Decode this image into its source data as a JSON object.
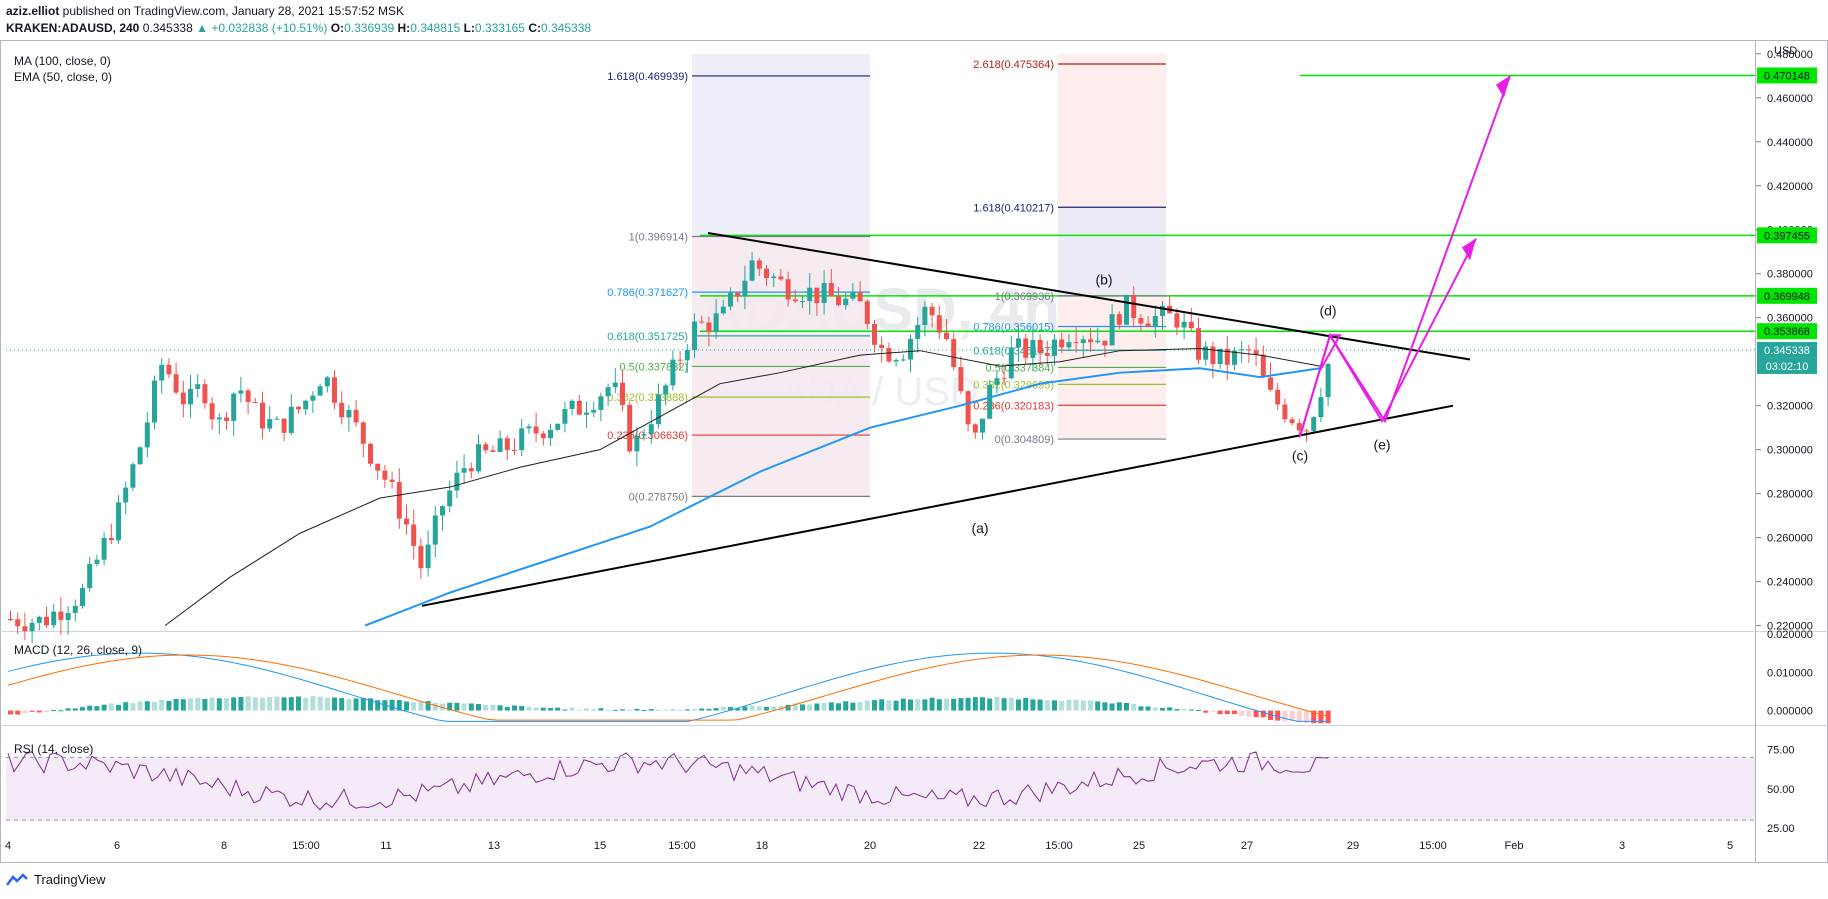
{
  "header": {
    "author": "aziz.elliot",
    "published": " published on TradingView.com, January 28, 2021 15:57:52 MSK",
    "symbol": "KRAKEN:ADAUSD, 240",
    "last": "0.345338",
    "change": "▲ +0.032838 (+10.51%)",
    "o_label": "O:",
    "o": "0.336939",
    "h_label": "H:",
    "h": "0.348815",
    "l_label": "L:",
    "l": "0.333165",
    "c_label": "C:",
    "c": "0.345338"
  },
  "indicators": {
    "ma": "MA (100, close, 0)",
    "ema": "EMA (50, close, 0)",
    "macd": "MACD (12, 26, close, 9)",
    "rsi": "RSI (14, close)"
  },
  "watermark": {
    "main": "ADAUSD, 4h",
    "sub": "ADA / USD"
  },
  "brand": {
    "name": "TradingView"
  },
  "colors": {
    "up": "#26a69a",
    "down": "#ef5350",
    "ma": "#1e1e1e",
    "ema": "#2196f3",
    "projection": "#e91ee6",
    "resistance": "#00e600",
    "trend": "#000000",
    "macd": "#2196f3",
    "signal": "#ff6d00",
    "rsi": "#7e2d8e"
  },
  "chart_data": {
    "type": "candlestick",
    "x_ticks": [
      "4",
      "6",
      "8",
      "15:00",
      "11",
      "13",
      "15",
      "15:00",
      "18",
      "20",
      "22",
      "15:00",
      "25",
      "27",
      "29",
      "15:00",
      "Feb",
      "3",
      "5"
    ],
    "y_ticks": [
      "0.480000",
      "0.460000",
      "0.440000",
      "0.420000",
      "0.400000",
      "0.380000",
      "0.360000",
      "0.320000",
      "0.300000",
      "0.280000",
      "0.260000",
      "0.240000",
      "0.220000"
    ],
    "ylim": [
      0.218,
      0.484
    ],
    "y_unit": "USD",
    "price_tags": [
      {
        "value": 0.470148,
        "label": "0.470148",
        "kind": "level"
      },
      {
        "value": 0.397455,
        "label": "0.397455",
        "kind": "level"
      },
      {
        "value": 0.369948,
        "label": "0.369948",
        "kind": "level"
      },
      {
        "value": 0.353868,
        "label": "0.353868",
        "kind": "level"
      },
      {
        "value": 0.345338,
        "label": "0.345338",
        "kind": "last"
      }
    ],
    "countdown": "03:02:10",
    "fib_sets": [
      {
        "name": "fib-1",
        "levels": [
          {
            "label": "1.618(0.469939)",
            "value": 0.469939,
            "color": "#1a237e"
          },
          {
            "label": "1(0.396914)",
            "value": 0.396914,
            "color": "#787b86"
          },
          {
            "label": "0.786(0.371627)",
            "value": 0.371627,
            "color": "#2196f3"
          },
          {
            "label": "0.618(0.351725)",
            "value": 0.351725,
            "color": "#26a69a"
          },
          {
            "label": "0.5(0.337832)",
            "value": 0.337832,
            "color": "#4caf50"
          },
          {
            "label": "0.382(0.323888)",
            "value": 0.323888,
            "color": "#9bbe2d"
          },
          {
            "label": "0.236(0.306636)",
            "value": 0.306636,
            "color": "#e53935"
          },
          {
            "label": "0(0.278750)",
            "value": 0.27875,
            "color": "#787b86"
          }
        ]
      },
      {
        "name": "fib-2",
        "levels": [
          {
            "label": "2.618(0.475364)",
            "value": 0.475364,
            "color": "#b71c1c"
          },
          {
            "label": "1.618(0.410217)",
            "value": 0.410217,
            "color": "#1a237e"
          },
          {
            "label": "1(0.369936)",
            "value": 0.369936,
            "color": "#787b86"
          },
          {
            "label": "0.786(0.356015)",
            "value": 0.356015,
            "color": "#2196f3"
          },
          {
            "label": "0.618(0.345197)",
            "value": 0.345197,
            "color": "#26a69a"
          },
          {
            "label": "0.5(0.337384)",
            "value": 0.337384,
            "color": "#4caf50"
          },
          {
            "label": "0.382(0.329695)",
            "value": 0.329695,
            "color": "#9bbe2d"
          },
          {
            "label": "0.236(0.320183)",
            "value": 0.320183,
            "color": "#e53935"
          },
          {
            "label": "0(0.304809)",
            "value": 0.304809,
            "color": "#787b86"
          }
        ]
      }
    ],
    "wave_labels": [
      "(a)",
      "(b)",
      "(c)",
      "(d)",
      "(e)"
    ],
    "macd_ticks": [
      "0.020000",
      "0.010000",
      "0.000000"
    ],
    "macd_range": [
      -0.0035,
      0.0205
    ],
    "rsi_ticks": [
      "75.00",
      "50.00",
      "25.00"
    ],
    "rsi_range": [
      25,
      90
    ],
    "rsi_bands": [
      70,
      30
    ]
  }
}
